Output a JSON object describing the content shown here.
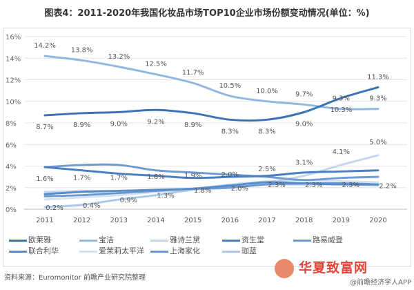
{
  "chart_data": {
    "type": "line",
    "title": "图表4：2011-2020年我国化妆品市场TOP10企业市场份额变动情况(单位：%)",
    "xlabel": "",
    "ylabel": "",
    "ylim": [
      0,
      16
    ],
    "yticks": [
      "0%",
      "2%",
      "4%",
      "6%",
      "8%",
      "10%",
      "12%",
      "14%",
      "16%"
    ],
    "x": [
      "2011",
      "2012",
      "2013",
      "2014",
      "2015",
      "2016",
      "2017",
      "2018",
      "2019",
      "2020"
    ],
    "grid": true,
    "legend_position": "bottom",
    "series": [
      {
        "name": "欧莱雅",
        "color": "#3d72b8",
        "values": [
          8.7,
          8.9,
          9.0,
          9.2,
          8.9,
          8.3,
          8.3,
          9.0,
          10.3,
          11.3
        ],
        "labels": [
          "8.7%",
          "8.9%",
          "9.0%",
          "9.2%",
          "8.9%",
          "8.3%",
          "8.3%",
          "9.0%",
          "10.3%",
          "11.3%"
        ],
        "label_pos": "below"
      },
      {
        "name": "宝洁",
        "color": "#93b7df",
        "values": [
          14.2,
          13.8,
          13.2,
          12.5,
          11.7,
          10.5,
          10.0,
          9.7,
          9.3,
          9.3
        ],
        "labels": [
          "14.2%",
          "13.8%",
          "13.2%",
          "12.5%",
          "11.7%",
          "10.5%",
          "10.0%",
          "9.7%",
          "9.3%",
          "9.3%"
        ],
        "label_pos": "above"
      },
      {
        "name": "雅诗兰黛",
        "color": "#c3d7ef",
        "values": [
          1.6,
          1.7,
          1.7,
          1.8,
          1.9,
          2.0,
          2.5,
          3.1,
          4.1,
          5.0
        ],
        "labels": [
          "1.6%",
          "1.7%",
          "1.7%",
          "1.8%",
          "1.9%",
          "2.0%",
          "2.5%",
          "3.1%",
          "4.1%",
          "5.0%"
        ],
        "label_pos": "above"
      },
      {
        "name": "资生堂",
        "color": "#4a7fc0",
        "values": [
          3.9,
          3.6,
          3.3,
          3.1,
          2.9,
          3.0,
          3.1,
          3.4,
          3.5,
          3.6
        ]
      },
      {
        "name": "路易威登",
        "color": "#6f9bd2",
        "values": [
          3.9,
          4.1,
          4.1,
          3.6,
          3.4,
          3.2,
          3.0,
          2.7,
          2.9,
          3.0
        ]
      },
      {
        "name": "联合利华",
        "color": "#5b8cca",
        "values": [
          1.4,
          1.6,
          1.7,
          1.8,
          1.9,
          2.2,
          2.5,
          2.4,
          2.3,
          2.3
        ]
      },
      {
        "name": "爱茉莉太平洋",
        "color": "#d3e2f4",
        "values": [
          0.9,
          1.1,
          1.3,
          1.6,
          1.9,
          2.3,
          2.6,
          2.7,
          2.6,
          2.5
        ]
      },
      {
        "name": "上海家化",
        "color": "#6a98d0",
        "values": [
          1.2,
          1.3,
          1.5,
          1.7,
          1.9,
          2.0,
          2.3,
          2.4,
          2.4,
          2.3
        ]
      },
      {
        "name": "珈蓝",
        "color": "#abc8e9",
        "values": [
          0.2,
          0.4,
          0.9,
          1.3,
          1.8,
          2.0,
          2.3,
          2.3,
          2.3,
          2.2
        ],
        "labels": [
          "0.2%",
          "0.4%",
          "0.9%",
          "1.3%",
          "1.8%",
          "2.0%",
          "2.3%",
          "2.3%",
          "2.3%",
          "2.2%"
        ],
        "label_pos": "right"
      }
    ]
  },
  "footer": {
    "source": "资料来源：Euromonitor 前瞻产业研究院整理",
    "credit": "@前瞻经济学人APP",
    "watermark": "华夏致富网"
  }
}
